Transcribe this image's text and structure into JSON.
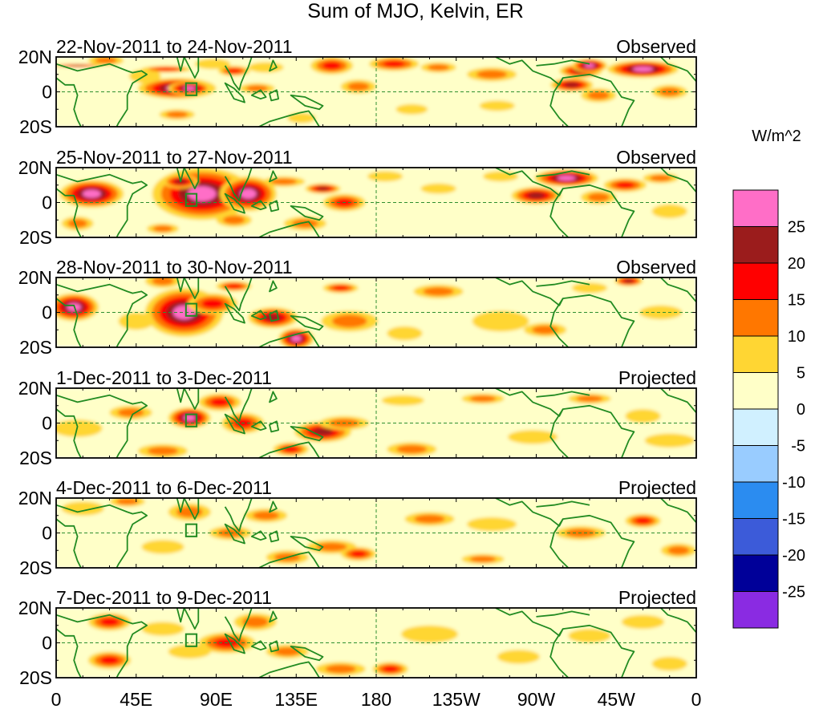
{
  "title": "Sum of MJO, Kelvin, ER",
  "units": "W/m^2",
  "panels": [
    {
      "date_range": "22-Nov-2011 to 24-Nov-2011",
      "status": "Observed"
    },
    {
      "date_range": "25-Nov-2011 to 27-Nov-2011",
      "status": "Observed"
    },
    {
      "date_range": "28-Nov-2011 to 30-Nov-2011",
      "status": "Observed"
    },
    {
      "date_range": "1-Dec-2011 to 3-Dec-2011",
      "status": "Projected"
    },
    {
      "date_range": "4-Dec-2011 to 6-Dec-2011",
      "status": "Projected"
    },
    {
      "date_range": "7-Dec-2011 to 9-Dec-2011",
      "status": "Projected"
    }
  ],
  "lat_labels": [
    "20N",
    "0",
    "20S"
  ],
  "lon_labels": [
    "0",
    "45E",
    "90E",
    "135E",
    "180",
    "135W",
    "90W",
    "45W",
    "0"
  ],
  "colorbar": {
    "levels": [
      "25",
      "20",
      "15",
      "10",
      "5",
      "0",
      "-5",
      "-10",
      "-15",
      "-20",
      "-25"
    ],
    "colors": [
      "#ff6ec7",
      "#9b1c1c",
      "#ff0000",
      "#ff7700",
      "#ffd633",
      "#ffffc8",
      "#d0f0ff",
      "#99ccff",
      "#2b8cf0",
      "#3c5bd9",
      "#000099",
      "#8a2be2"
    ]
  },
  "colors": {
    "coast": "#228b22",
    "equator": "#2f8f2f",
    "meridian": "#2f8f2f",
    "box": "#228b22"
  }
}
